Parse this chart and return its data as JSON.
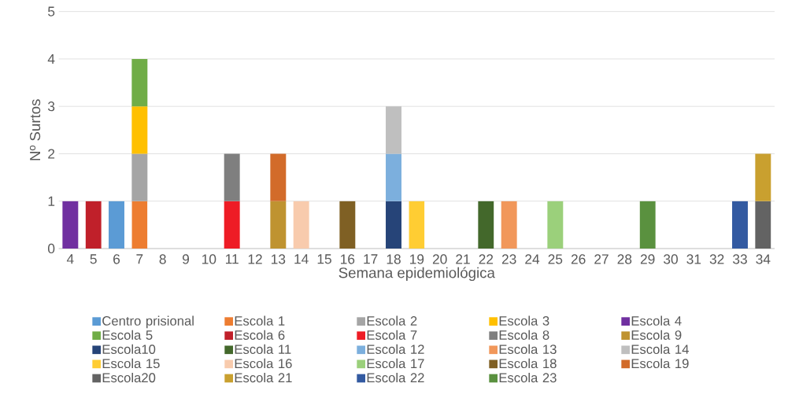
{
  "chart_data": {
    "type": "bar",
    "stacked": true,
    "xlabel": "Semana epidemiológica",
    "ylabel": "Nº Surtos",
    "categories": [
      "4",
      "5",
      "6",
      "7",
      "8",
      "9",
      "10",
      "11",
      "12",
      "13",
      "14",
      "15",
      "16",
      "17",
      "18",
      "19",
      "20",
      "21",
      "22",
      "23",
      "24",
      "25",
      "26",
      "27",
      "28",
      "29",
      "30",
      "31",
      "32",
      "33",
      "34"
    ],
    "ylim": [
      0,
      5
    ],
    "yticks": [
      0,
      1,
      2,
      3,
      4,
      5
    ],
    "grid": "y",
    "legend": "bottom",
    "series": [
      {
        "name": "Centro prisional",
        "color": "#5b9bd5",
        "values": [
          null,
          null,
          1,
          null,
          null,
          null,
          null,
          null,
          null,
          null,
          null,
          null,
          null,
          null,
          null,
          null,
          null,
          null,
          null,
          null,
          null,
          null,
          null,
          null,
          null,
          null,
          null,
          null,
          null,
          null,
          null
        ]
      },
      {
        "name": "Escola 1",
        "color": "#ed7d31",
        "values": [
          null,
          null,
          null,
          1,
          null,
          null,
          null,
          null,
          null,
          null,
          null,
          null,
          null,
          null,
          null,
          null,
          null,
          null,
          null,
          null,
          null,
          null,
          null,
          null,
          null,
          null,
          null,
          null,
          null,
          null,
          null
        ]
      },
      {
        "name": "Escola 2",
        "color": "#a5a5a5",
        "values": [
          null,
          null,
          null,
          1,
          null,
          null,
          null,
          null,
          null,
          null,
          null,
          null,
          null,
          null,
          null,
          null,
          null,
          null,
          null,
          null,
          null,
          null,
          null,
          null,
          null,
          null,
          null,
          null,
          null,
          null,
          null
        ]
      },
      {
        "name": "Escola 3",
        "color": "#ffc000",
        "values": [
          null,
          null,
          null,
          1,
          null,
          null,
          null,
          null,
          null,
          null,
          null,
          null,
          null,
          null,
          null,
          null,
          null,
          null,
          null,
          null,
          null,
          null,
          null,
          null,
          null,
          null,
          null,
          null,
          null,
          null,
          null
        ]
      },
      {
        "name": "Escola 4",
        "color": "#7030a0",
        "values": [
          1,
          null,
          null,
          null,
          null,
          null,
          null,
          null,
          null,
          null,
          null,
          null,
          null,
          null,
          null,
          null,
          null,
          null,
          null,
          null,
          null,
          null,
          null,
          null,
          null,
          null,
          null,
          null,
          null,
          null,
          null
        ]
      },
      {
        "name": "Escola 5",
        "color": "#70ad47",
        "values": [
          null,
          null,
          null,
          1,
          null,
          null,
          null,
          null,
          null,
          null,
          null,
          null,
          null,
          null,
          null,
          null,
          null,
          null,
          null,
          null,
          null,
          null,
          null,
          null,
          null,
          null,
          null,
          null,
          null,
          null,
          null
        ]
      },
      {
        "name": "Escola 6",
        "color": "#c0202a",
        "values": [
          null,
          1,
          null,
          null,
          null,
          null,
          null,
          null,
          null,
          null,
          null,
          null,
          null,
          null,
          null,
          null,
          null,
          null,
          null,
          null,
          null,
          null,
          null,
          null,
          null,
          null,
          null,
          null,
          null,
          null,
          null
        ]
      },
      {
        "name": "Escola 7",
        "color": "#ee1c25",
        "values": [
          null,
          null,
          null,
          null,
          null,
          null,
          null,
          1,
          null,
          null,
          null,
          null,
          null,
          null,
          null,
          null,
          null,
          null,
          null,
          null,
          null,
          null,
          null,
          null,
          null,
          null,
          null,
          null,
          null,
          null,
          null
        ]
      },
      {
        "name": "Escola 8",
        "color": "#7f7f7f",
        "values": [
          null,
          null,
          null,
          null,
          null,
          null,
          null,
          1,
          null,
          null,
          null,
          null,
          null,
          null,
          null,
          null,
          null,
          null,
          null,
          null,
          null,
          null,
          null,
          null,
          null,
          null,
          null,
          null,
          null,
          null,
          null
        ]
      },
      {
        "name": "Escola 9",
        "color": "#bf9330",
        "values": [
          null,
          null,
          null,
          null,
          null,
          null,
          null,
          null,
          null,
          1,
          null,
          null,
          null,
          null,
          null,
          null,
          null,
          null,
          null,
          null,
          null,
          null,
          null,
          null,
          null,
          null,
          null,
          null,
          null,
          null,
          null
        ]
      },
      {
        "name": "Escola10",
        "color": "#264478",
        "values": [
          null,
          null,
          null,
          null,
          null,
          null,
          null,
          null,
          null,
          null,
          null,
          null,
          null,
          null,
          1,
          null,
          null,
          null,
          null,
          null,
          null,
          null,
          null,
          null,
          null,
          null,
          null,
          null,
          null,
          null,
          null
        ]
      },
      {
        "name": "Escola 11",
        "color": "#43682b",
        "values": [
          null,
          null,
          null,
          null,
          null,
          null,
          null,
          null,
          null,
          null,
          null,
          null,
          null,
          null,
          null,
          null,
          null,
          null,
          1,
          null,
          null,
          null,
          null,
          null,
          null,
          null,
          null,
          null,
          null,
          null,
          null
        ]
      },
      {
        "name": "Escola 12",
        "color": "#7cafdd",
        "values": [
          null,
          null,
          null,
          null,
          null,
          null,
          null,
          null,
          null,
          null,
          null,
          null,
          null,
          null,
          1,
          null,
          null,
          null,
          null,
          null,
          null,
          null,
          null,
          null,
          null,
          null,
          null,
          null,
          null,
          null,
          null
        ]
      },
      {
        "name": "Escola 13",
        "color": "#f1975a",
        "values": [
          null,
          null,
          null,
          null,
          null,
          null,
          null,
          null,
          null,
          null,
          null,
          null,
          null,
          null,
          null,
          null,
          null,
          null,
          null,
          1,
          null,
          null,
          null,
          null,
          null,
          null,
          null,
          null,
          null,
          null,
          null
        ]
      },
      {
        "name": "Escola 14",
        "color": "#bfbfbf",
        "values": [
          null,
          null,
          null,
          null,
          null,
          null,
          null,
          null,
          null,
          null,
          null,
          null,
          null,
          null,
          1,
          null,
          null,
          null,
          null,
          null,
          null,
          null,
          null,
          null,
          null,
          null,
          null,
          null,
          null,
          null,
          null
        ]
      },
      {
        "name": "Escola 15",
        "color": "#ffcd33",
        "values": [
          null,
          null,
          null,
          null,
          null,
          null,
          null,
          null,
          null,
          null,
          null,
          null,
          null,
          null,
          null,
          1,
          null,
          null,
          null,
          null,
          null,
          null,
          null,
          null,
          null,
          null,
          null,
          null,
          null,
          null,
          null
        ]
      },
      {
        "name": "Escola 16",
        "color": "#f8cbad",
        "values": [
          null,
          null,
          null,
          null,
          null,
          null,
          null,
          null,
          null,
          null,
          1,
          null,
          null,
          null,
          null,
          null,
          null,
          null,
          null,
          null,
          null,
          null,
          null,
          null,
          null,
          null,
          null,
          null,
          null,
          null,
          null
        ]
      },
      {
        "name": "Escola 17",
        "color": "#9bd07b",
        "values": [
          null,
          null,
          null,
          null,
          null,
          null,
          null,
          null,
          null,
          null,
          null,
          null,
          null,
          null,
          null,
          null,
          null,
          null,
          null,
          null,
          null,
          1,
          null,
          null,
          null,
          null,
          null,
          null,
          null,
          null,
          null
        ]
      },
      {
        "name": "Escola 18",
        "color": "#7f6024",
        "values": [
          null,
          null,
          null,
          null,
          null,
          null,
          null,
          null,
          null,
          null,
          null,
          null,
          1,
          null,
          null,
          null,
          null,
          null,
          null,
          null,
          null,
          null,
          null,
          null,
          null,
          null,
          null,
          null,
          null,
          null,
          null
        ]
      },
      {
        "name": "Escola 19",
        "color": "#d26b2a",
        "values": [
          null,
          null,
          null,
          null,
          null,
          null,
          null,
          null,
          null,
          1,
          null,
          null,
          null,
          null,
          null,
          null,
          null,
          null,
          null,
          null,
          null,
          null,
          null,
          null,
          null,
          null,
          null,
          null,
          null,
          null,
          null
        ]
      },
      {
        "name": "Escola20",
        "color": "#636363",
        "values": [
          null,
          null,
          null,
          null,
          null,
          null,
          null,
          null,
          null,
          null,
          null,
          null,
          null,
          null,
          null,
          null,
          null,
          null,
          null,
          null,
          null,
          null,
          null,
          null,
          null,
          null,
          null,
          null,
          null,
          null,
          1
        ]
      },
      {
        "name": "Escola 21",
        "color": "#c9a02f",
        "values": [
          null,
          null,
          null,
          null,
          null,
          null,
          null,
          null,
          null,
          null,
          null,
          null,
          null,
          null,
          null,
          null,
          null,
          null,
          null,
          null,
          null,
          null,
          null,
          null,
          null,
          null,
          null,
          null,
          null,
          null,
          1
        ]
      },
      {
        "name": "Escola 22",
        "color": "#335aa1",
        "values": [
          null,
          null,
          null,
          null,
          null,
          null,
          null,
          null,
          null,
          null,
          null,
          null,
          null,
          null,
          null,
          null,
          null,
          null,
          null,
          null,
          null,
          null,
          null,
          null,
          null,
          null,
          null,
          null,
          null,
          1,
          null
        ]
      },
      {
        "name": "Escola 23",
        "color": "#5a913f",
        "values": [
          null,
          null,
          null,
          null,
          null,
          null,
          null,
          null,
          null,
          null,
          null,
          null,
          null,
          null,
          null,
          null,
          null,
          null,
          null,
          null,
          null,
          null,
          null,
          null,
          null,
          1,
          null,
          null,
          null,
          null,
          null
        ]
      }
    ]
  }
}
